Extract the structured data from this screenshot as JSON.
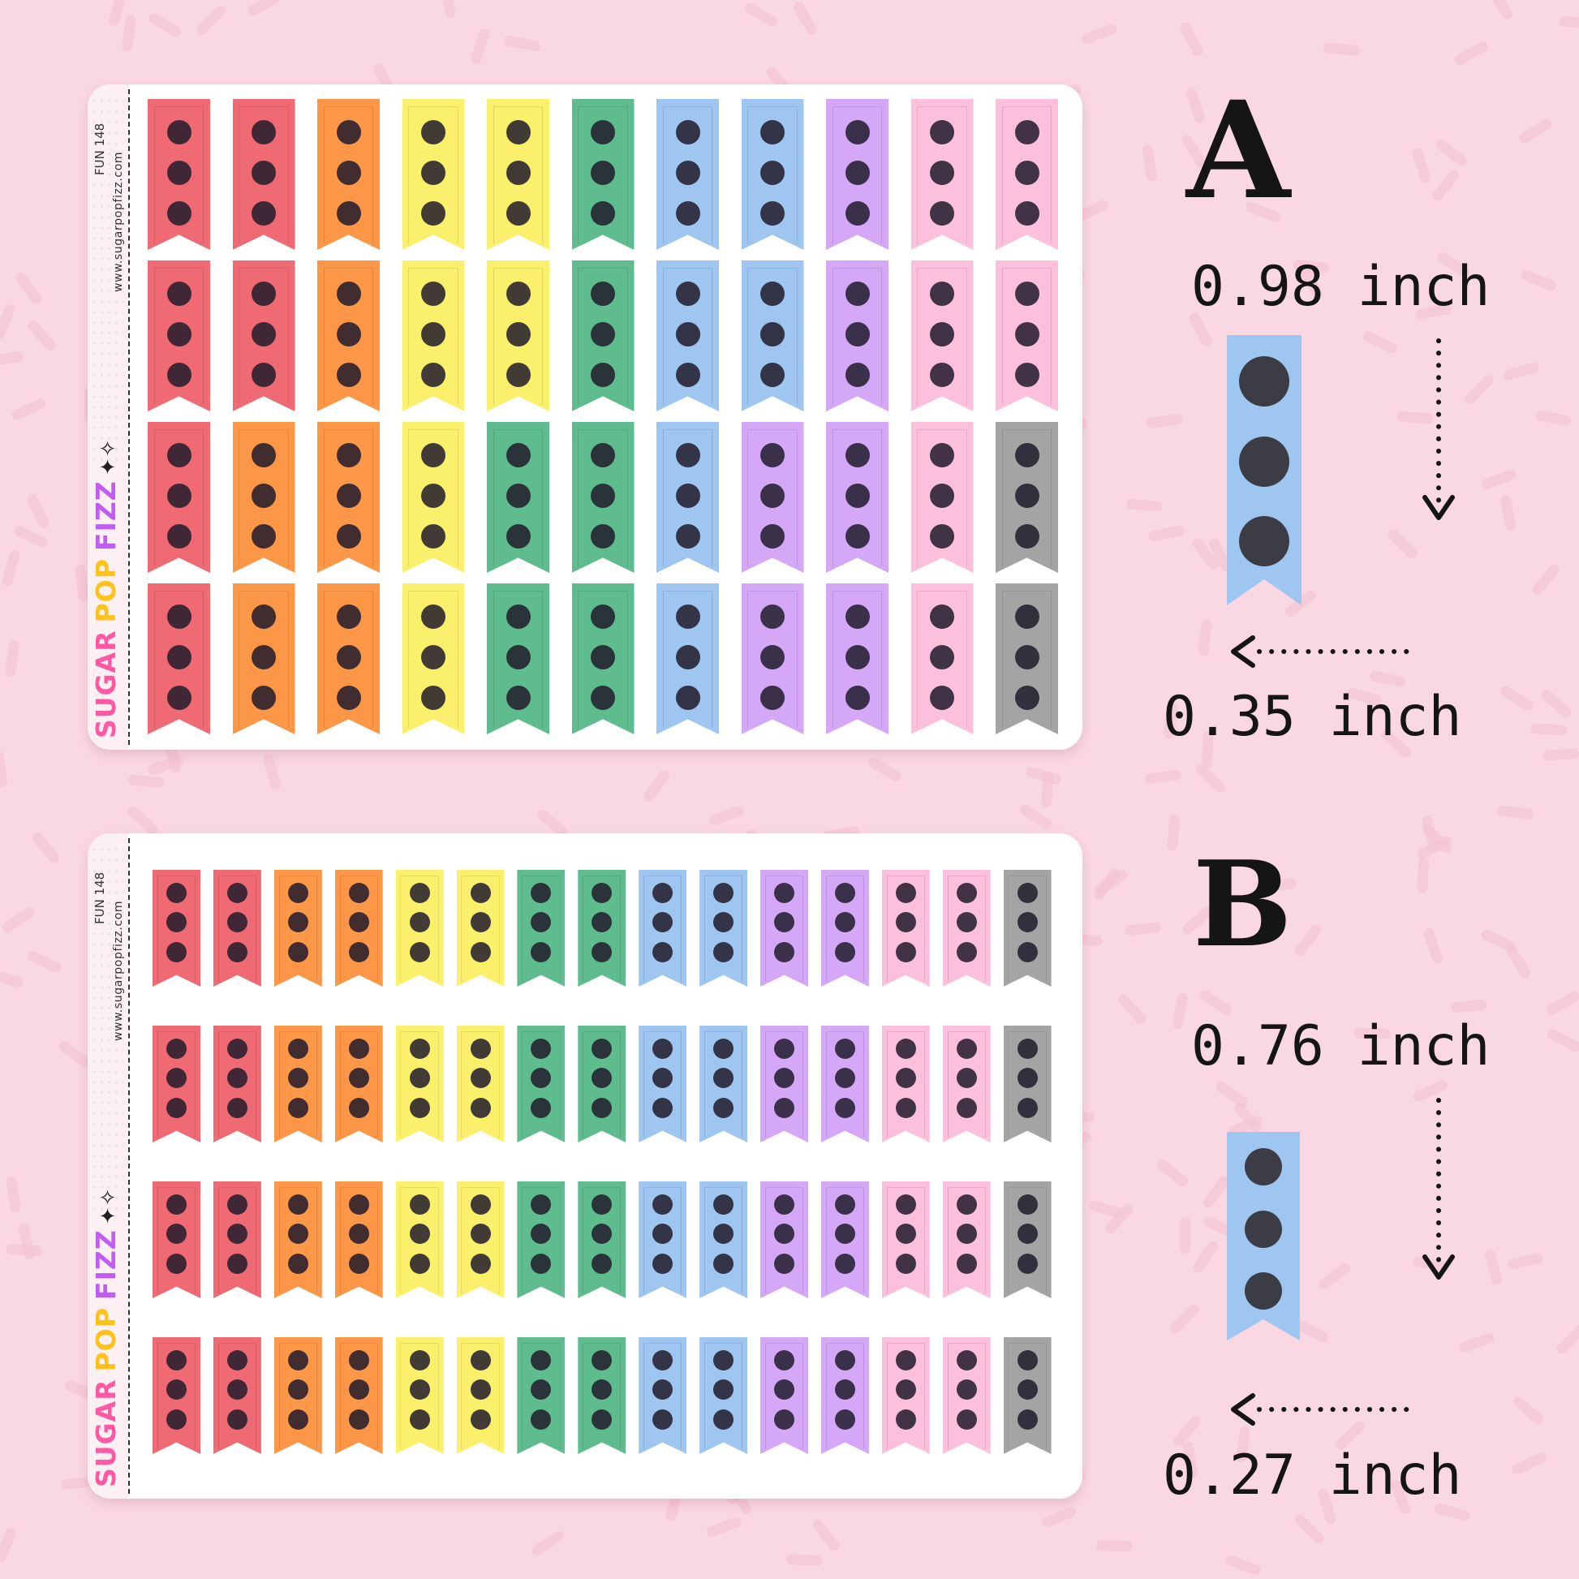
{
  "colors": {
    "background": "#fad8e3",
    "sprinkle": "#f3c2d2",
    "sheet": "#ffffff",
    "text": "#151515",
    "dot": "#221c2c",
    "sample_blue": "#9ec6f1"
  },
  "palette": {
    "red": "#f06a74",
    "orange": "#fd9748",
    "yellow": "#fbf06c",
    "green": "#5fbc8e",
    "blue": "#9ec6f1",
    "purple": "#d4a7f7",
    "pink": "#fcbfdc",
    "gray": "#a5a4a5"
  },
  "brand": {
    "word1": "SUGAR",
    "word2": "POP",
    "word3": "FIZZ",
    "sparkle": "✦✧"
  },
  "sheet_a": {
    "sku": "FUN 148",
    "website": "www.sugarpopfizz.com",
    "label": "A",
    "height": "0.98 inch",
    "width": "0.35 inch",
    "rows": [
      [
        "red",
        "red",
        "orange",
        "yellow",
        "yellow",
        "green",
        "blue",
        "blue",
        "purple",
        "pink",
        "pink"
      ],
      [
        "red",
        "red",
        "orange",
        "yellow",
        "yellow",
        "green",
        "blue",
        "blue",
        "purple",
        "pink",
        "pink"
      ],
      [
        "red",
        "orange",
        "orange",
        "yellow",
        "green",
        "green",
        "blue",
        "purple",
        "purple",
        "pink",
        "gray"
      ],
      [
        "red",
        "orange",
        "orange",
        "yellow",
        "green",
        "green",
        "blue",
        "purple",
        "purple",
        "pink",
        "gray"
      ]
    ]
  },
  "sheet_b": {
    "sku": "FUN 148",
    "website": "www.sugarpopfizz.com",
    "label": "B",
    "height": "0.76 inch",
    "width": "0.27 inch",
    "rows": [
      [
        "red",
        "red",
        "orange",
        "orange",
        "yellow",
        "yellow",
        "green",
        "green",
        "blue",
        "blue",
        "purple",
        "purple",
        "pink",
        "pink",
        "gray"
      ],
      [
        "red",
        "red",
        "orange",
        "orange",
        "yellow",
        "yellow",
        "green",
        "green",
        "blue",
        "blue",
        "purple",
        "purple",
        "pink",
        "pink",
        "gray"
      ],
      [
        "red",
        "red",
        "orange",
        "orange",
        "yellow",
        "yellow",
        "green",
        "green",
        "blue",
        "blue",
        "purple",
        "purple",
        "pink",
        "pink",
        "gray"
      ],
      [
        "red",
        "red",
        "orange",
        "orange",
        "yellow",
        "yellow",
        "green",
        "green",
        "blue",
        "blue",
        "purple",
        "purple",
        "pink",
        "pink",
        "gray"
      ]
    ]
  }
}
